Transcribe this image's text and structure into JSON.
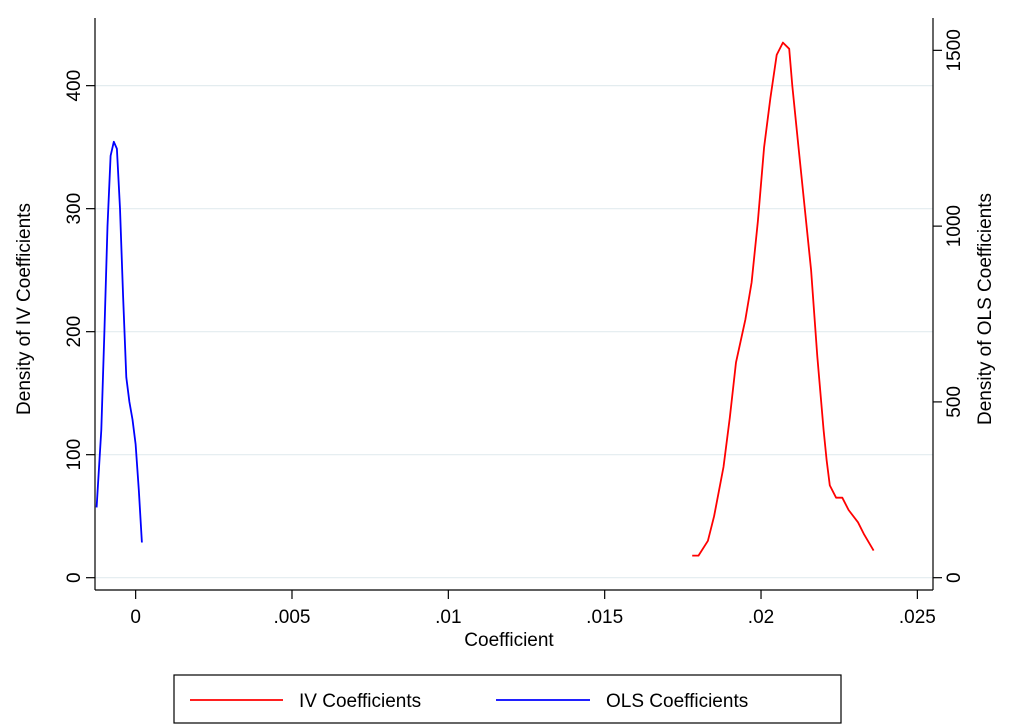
{
  "chart_data": {
    "type": "line",
    "title": "",
    "xlabel": "Coefficient",
    "ylabel_left": "Density of IV Coefficients",
    "ylabel_right": "Density of OLS Coefficients",
    "xlim": [
      -0.0013,
      0.0255
    ],
    "ylim_left": [
      -10,
      455
    ],
    "ylim_right": [
      -35,
      1592
    ],
    "xticks": [
      {
        "value": 0,
        "label": "0"
      },
      {
        "value": 0.005,
        "label": ".005"
      },
      {
        "value": 0.01,
        "label": ".01"
      },
      {
        "value": 0.015,
        "label": ".015"
      },
      {
        "value": 0.02,
        "label": ".02"
      },
      {
        "value": 0.025,
        "label": ".025"
      }
    ],
    "yticks_left": [
      {
        "value": 0,
        "label": "0"
      },
      {
        "value": 100,
        "label": "100"
      },
      {
        "value": 200,
        "label": "200"
      },
      {
        "value": 300,
        "label": "300"
      },
      {
        "value": 400,
        "label": "400"
      }
    ],
    "yticks_right": [
      {
        "value": 0,
        "label": "0"
      },
      {
        "value": 500,
        "label": "500"
      },
      {
        "value": 1000,
        "label": "1000"
      },
      {
        "value": 1500,
        "label": "1500"
      }
    ],
    "grid": true,
    "legend_position": "bottom",
    "series": [
      {
        "name": "IV Coefficients",
        "axis": "left",
        "color": "#ff0000",
        "x": [
          0.0178,
          0.018,
          0.0183,
          0.0185,
          0.0188,
          0.019,
          0.0192,
          0.0195,
          0.0197,
          0.0199,
          0.0201,
          0.0203,
          0.0205,
          0.0207,
          0.0209,
          0.021,
          0.0212,
          0.0214,
          0.0216,
          0.0218,
          0.022,
          0.0221,
          0.0222,
          0.0224,
          0.0226,
          0.0228,
          0.0231,
          0.0233,
          0.0236
        ],
        "y": [
          18,
          18,
          30,
          50,
          90,
          130,
          175,
          210,
          240,
          290,
          350,
          390,
          425,
          435,
          430,
          400,
          350,
          300,
          250,
          180,
          120,
          95,
          75,
          65,
          65,
          55,
          45,
          35,
          22
        ]
      },
      {
        "name": "OLS Coefficients",
        "axis": "right",
        "color": "#0000ff",
        "x": [
          -0.00125,
          -0.0011,
          -0.001,
          -0.0009,
          -0.0008,
          -0.0007,
          -0.0006,
          -0.0005,
          -0.0004,
          -0.0003,
          -0.0002,
          -0.0001,
          0.0,
          0.0001,
          0.0002
        ],
        "y": [
          200,
          420,
          700,
          1000,
          1200,
          1240,
          1220,
          1050,
          800,
          570,
          500,
          450,
          380,
          250,
          100
        ]
      }
    ]
  }
}
